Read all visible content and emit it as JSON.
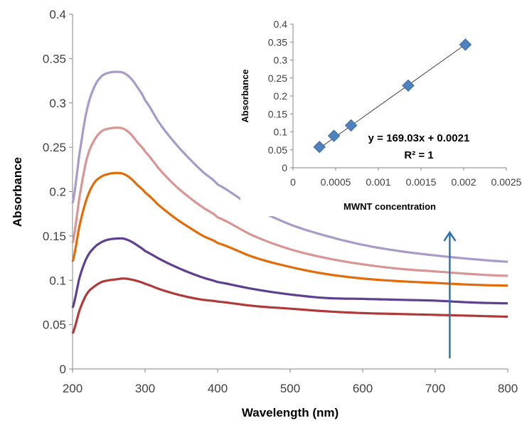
{
  "chart_data": [
    {
      "type": "line",
      "xlabel": "Wavelength (nm)",
      "ylabel": "Absorbance",
      "xlim": [
        200,
        800
      ],
      "ylim": [
        0,
        0.4
      ],
      "xticks": [
        "200",
        "300",
        "400",
        "500",
        "600",
        "700",
        "800"
      ],
      "yticks": [
        "0",
        "0.05",
        "0.1",
        "0.15",
        "0.2",
        "0.25",
        "0.3",
        "0.35",
        "0.4"
      ],
      "grid": false,
      "legend": false,
      "x": [
        200,
        210,
        220,
        230,
        240,
        250,
        260,
        270,
        280,
        290,
        300,
        320,
        340,
        360,
        380,
        400,
        450,
        500,
        550,
        600,
        650,
        700,
        750,
        800
      ],
      "series": [
        {
          "color": "#a99bc9",
          "values": [
            0.187,
            0.245,
            0.293,
            0.318,
            0.33,
            0.334,
            0.335,
            0.334,
            0.328,
            0.317,
            0.303,
            0.277,
            0.256,
            0.238,
            0.222,
            0.208,
            0.182,
            0.163,
            0.15,
            0.14,
            0.133,
            0.128,
            0.124,
            0.121
          ]
        },
        {
          "color": "#d99594",
          "values": [
            0.142,
            0.196,
            0.238,
            0.258,
            0.268,
            0.271,
            0.272,
            0.271,
            0.265,
            0.255,
            0.245,
            0.225,
            0.208,
            0.194,
            0.182,
            0.171,
            0.15,
            0.135,
            0.125,
            0.118,
            0.113,
            0.11,
            0.107,
            0.105
          ]
        },
        {
          "color": "#e36c09",
          "values": [
            0.121,
            0.163,
            0.193,
            0.21,
            0.217,
            0.22,
            0.221,
            0.22,
            0.215,
            0.207,
            0.199,
            0.184,
            0.171,
            0.16,
            0.15,
            0.142,
            0.126,
            0.115,
            0.107,
            0.102,
            0.099,
            0.097,
            0.095,
            0.094
          ]
        },
        {
          "color": "#5f3f8f",
          "values": [
            0.069,
            0.104,
            0.126,
            0.137,
            0.143,
            0.146,
            0.147,
            0.147,
            0.144,
            0.139,
            0.133,
            0.124,
            0.116,
            0.109,
            0.103,
            0.098,
            0.09,
            0.084,
            0.08,
            0.079,
            0.078,
            0.077,
            0.075,
            0.074
          ]
        },
        {
          "color": "#b03a3a",
          "values": [
            0.04,
            0.067,
            0.085,
            0.093,
            0.098,
            0.1,
            0.101,
            0.102,
            0.101,
            0.099,
            0.096,
            0.09,
            0.085,
            0.081,
            0.078,
            0.076,
            0.071,
            0.068,
            0.065,
            0.063,
            0.062,
            0.061,
            0.06,
            0.059
          ]
        }
      ],
      "arrow": {
        "x": 720,
        "y_from": 0.012,
        "y_to": 0.154,
        "color": "#2e75b6"
      }
    },
    {
      "type": "scatter",
      "xlabel": "MWNT concentration",
      "ylabel": "Absorbance",
      "xlim": [
        0,
        0.0025
      ],
      "ylim": [
        0,
        0.4
      ],
      "xticks": [
        "0",
        "0.0005",
        "0.001",
        "0.0015",
        "0.002",
        "0.0025"
      ],
      "yticks": [
        "0",
        "0.05",
        "0.1",
        "0.15",
        "0.2",
        "0.25",
        "0.3",
        "0.35",
        "0.4"
      ],
      "grid": false,
      "marker": "diamond",
      "marker_color": "#4f81bd",
      "x": [
        0.00031,
        0.00048,
        0.00068,
        0.00135,
        0.00202
      ],
      "y": [
        0.058,
        0.089,
        0.118,
        0.229,
        0.343
      ],
      "trendline": {
        "slope": 169.03,
        "intercept": 0.0021,
        "x_range": [
          0.00028,
          0.00202
        ],
        "color": "#404040"
      },
      "equation": "y = 169.03x + 0.0021",
      "r2": "R² = 1"
    }
  ]
}
